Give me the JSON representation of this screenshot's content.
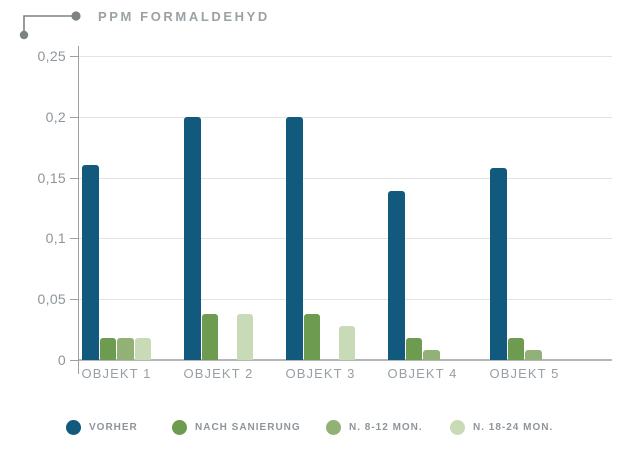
{
  "title": "PPM FORMALDEHYD",
  "colors": {
    "vorher_blue": "#115a7e",
    "nach_sanierung_green": "#6d9b50",
    "n_8_12_sage": "#92b176",
    "n_18_24_light": "#c9dab6",
    "gridline": "#e2e3e4",
    "baseline": "#b4b7b9",
    "axis": "#9aa0a3",
    "text_gray": "#8d959a",
    "title_gray": "#9aa2a6",
    "connector_gray": "#7d8285"
  },
  "chart_data": {
    "type": "bar",
    "title": "PPM FORMALDEHYD",
    "xlabel": "",
    "ylabel": "",
    "categories": [
      "OBJEKT 1",
      "OBJEKT 2",
      "OBJEKT 3",
      "OBJEKT 4",
      "OBJEKT 5"
    ],
    "series": [
      {
        "name": "VORHER",
        "color": "#115a7e",
        "values": [
          0.16,
          0.2,
          0.2,
          0.139,
          0.158
        ]
      },
      {
        "name": "NACH SANIERUNG",
        "color": "#6d9b50",
        "values": [
          0.018,
          0.038,
          0.038,
          0.018,
          0.018
        ]
      },
      {
        "name": "N. 8-12 MON.",
        "color": "#92b176",
        "values": [
          0.018,
          0,
          0,
          0.008,
          0.008
        ]
      },
      {
        "name": "N. 18-24 MON.",
        "color": "#c9dab6",
        "values": [
          0.018,
          0.038,
          0.028,
          0,
          0
        ]
      }
    ],
    "ylim": [
      0,
      0.25
    ],
    "yticks": [
      0,
      0.05,
      0.1,
      0.15,
      0.2,
      0.25
    ],
    "ytick_labels": [
      "0",
      "0,05",
      "0,1",
      "0,15",
      "0,2",
      "0,25"
    ],
    "grid": true,
    "legend_position": "bottom",
    "note_missing_bars": "N. 8-12 MON. absent for OBJEKT 2 and 3; N. 18-24 MON. absent for OBJEKT 4 and 5"
  },
  "legend": {
    "items": [
      "VORHER",
      "NACH SANIERUNG",
      "N. 8-12 MON.",
      "N. 18-24 MON."
    ]
  }
}
